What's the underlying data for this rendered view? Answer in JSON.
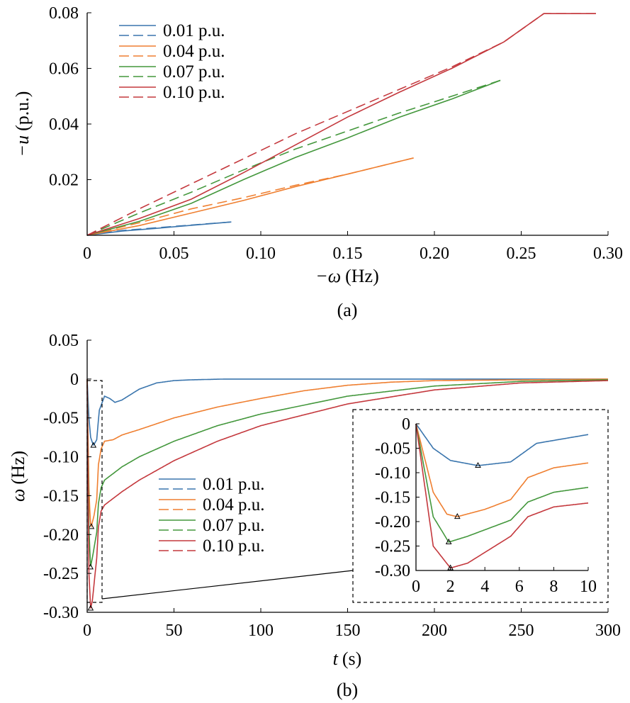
{
  "colors": [
    "#3a75ad",
    "#ef7f30",
    "#43973c",
    "#c4383d"
  ],
  "chart_data": [
    {
      "type": "line",
      "panel_label": "(a)",
      "xlabel_sym": "−ω",
      "xlabel_unit": "(Hz)",
      "ylabel_sym": "−u",
      "ylabel_unit": "(p.u.)",
      "xlim": [
        0,
        0.3
      ],
      "ylim": [
        0,
        0.08
      ],
      "xticks": [
        "0",
        "0.05",
        "0.10",
        "0.15",
        "0.20",
        "0.25",
        "0.30"
      ],
      "yticks": [
        "0.02",
        "0.04",
        "0.06",
        "0.08"
      ],
      "legend": [
        "0.01 p.u.",
        "0.04 p.u.",
        "0.07 p.u.",
        "0.10 p.u."
      ],
      "series": [
        {
          "name": "0.01 p.u.",
          "solid": {
            "x": [
              0,
              0.02,
              0.04,
              0.06,
              0.083
            ],
            "y": [
              0,
              0.0015,
              0.0025,
              0.0036,
              0.0048
            ]
          },
          "dashed": {
            "x": [
              0,
              0.02,
              0.04,
              0.06,
              0.083
            ],
            "y": [
              0,
              0.0017,
              0.0027,
              0.0037,
              0.0048
            ]
          }
        },
        {
          "name": "0.04 p.u.",
          "solid": {
            "x": [
              0,
              0.03,
              0.06,
              0.09,
              0.12,
              0.15,
              0.188
            ],
            "y": [
              0,
              0.0035,
              0.008,
              0.0125,
              0.0175,
              0.022,
              0.0278
            ]
          },
          "dashed": {
            "x": [
              0,
              0.03,
              0.06,
              0.09,
              0.12,
              0.15,
              0.188
            ],
            "y": [
              0,
              0.0045,
              0.0095,
              0.0135,
              0.018,
              0.022,
              0.0278
            ]
          }
        },
        {
          "name": "0.07 p.u.",
          "solid": {
            "x": [
              0,
              0.03,
              0.06,
              0.09,
              0.12,
              0.15,
              0.18,
              0.21,
              0.238
            ],
            "y": [
              0,
              0.005,
              0.0115,
              0.02,
              0.028,
              0.035,
              0.0425,
              0.049,
              0.0557
            ]
          },
          "dashed": {
            "x": [
              0,
              0.03,
              0.06,
              0.09,
              0.12,
              0.15,
              0.18,
              0.21,
              0.238
            ],
            "y": [
              0,
              0.008,
              0.0155,
              0.0235,
              0.031,
              0.0375,
              0.044,
              0.05,
              0.0557
            ]
          }
        },
        {
          "name": "0.10 p.u.",
          "solid": {
            "x": [
              0,
              0.03,
              0.06,
              0.09,
              0.12,
              0.15,
              0.18,
              0.21,
              0.24,
              0.263,
              0.293
            ],
            "y": [
              0,
              0.006,
              0.013,
              0.0225,
              0.0325,
              0.0425,
              0.0515,
              0.06,
              0.0695,
              0.0797,
              0.0797
            ]
          },
          "dashed": {
            "x": [
              0,
              0.03,
              0.06,
              0.09,
              0.12,
              0.15,
              0.18,
              0.21,
              0.24,
              0.263,
              0.293
            ],
            "y": [
              0,
              0.0095,
              0.0185,
              0.0275,
              0.0365,
              0.0445,
              0.0525,
              0.0605,
              0.0695,
              0.0797,
              0.0797
            ]
          }
        }
      ]
    },
    {
      "type": "line",
      "panel_label": "(b)",
      "xlabel_sym": "t",
      "xlabel_unit": "(s)",
      "ylabel_sym": "ω",
      "ylabel_unit": "(Hz)",
      "xlim": [
        0,
        300
      ],
      "ylim": [
        -0.3,
        0.05
      ],
      "xticks": [
        "0",
        "50",
        "100",
        "150",
        "200",
        "250",
        "300"
      ],
      "yticks": [
        "0.05",
        "0",
        "-0.05",
        "-0.10",
        "-0.15",
        "-0.20",
        "-0.25",
        "-0.30"
      ],
      "legend": [
        "0.01 p.u.",
        "0.04 p.u.",
        "0.07 p.u.",
        "0.10 p.u."
      ],
      "series": [
        {
          "name": "0.01 p.u.",
          "nadir_t": 3.6,
          "nadir": -0.0855,
          "t": [
            0,
            1,
            2,
            3.6,
            5.5,
            7,
            10,
            13,
            16,
            20,
            25,
            30,
            40,
            50,
            60,
            80,
            100,
            300
          ],
          "w": [
            0,
            -0.05,
            -0.075,
            -0.0855,
            -0.078,
            -0.04,
            -0.022,
            -0.025,
            -0.03,
            -0.027,
            -0.02,
            -0.013,
            -0.005,
            -0.002,
            -0.001,
            0,
            0,
            0
          ]
        },
        {
          "name": "0.04 p.u.",
          "nadir_t": 2.4,
          "nadir": -0.19,
          "t": [
            0,
            1,
            1.8,
            2.4,
            4,
            5.5,
            6.5,
            8,
            10,
            15,
            20,
            30,
            50,
            75,
            100,
            125,
            150,
            175,
            200,
            300
          ],
          "w": [
            0,
            -0.14,
            -0.185,
            -0.19,
            -0.175,
            -0.155,
            -0.11,
            -0.09,
            -0.08,
            -0.078,
            -0.072,
            -0.065,
            -0.05,
            -0.036,
            -0.025,
            -0.015,
            -0.008,
            -0.004,
            -0.002,
            0
          ]
        },
        {
          "name": "0.07 p.u.",
          "nadir_t": 1.9,
          "nadir": -0.242,
          "t": [
            0,
            1,
            1.9,
            3,
            5.5,
            6.5,
            8,
            10,
            20,
            30,
            50,
            75,
            100,
            150,
            200,
            250,
            300
          ],
          "w": [
            0,
            -0.19,
            -0.242,
            -0.23,
            -0.197,
            -0.16,
            -0.14,
            -0.13,
            -0.113,
            -0.1,
            -0.08,
            -0.06,
            -0.045,
            -0.022,
            -0.009,
            -0.003,
            -0.001
          ]
        },
        {
          "name": "0.10 p.u.",
          "nadir_t": 2.0,
          "nadir": -0.295,
          "t": [
            0,
            1,
            2,
            3,
            5.5,
            6.5,
            8,
            10,
            20,
            30,
            50,
            75,
            100,
            150,
            200,
            250,
            300
          ],
          "w": [
            0,
            -0.25,
            -0.295,
            -0.285,
            -0.23,
            -0.19,
            -0.17,
            -0.162,
            -0.145,
            -0.13,
            -0.105,
            -0.08,
            -0.06,
            -0.032,
            -0.014,
            -0.005,
            -0.002
          ]
        }
      ],
      "inset": {
        "xlim": [
          0,
          10
        ],
        "ylim": [
          -0.3,
          0
        ],
        "xticks": [
          "0",
          "2",
          "4",
          "6",
          "8",
          "10"
        ],
        "yticks": [
          "0",
          "-0.05",
          "-0.10",
          "-0.15",
          "-0.20",
          "-0.25",
          "-0.30"
        ]
      }
    }
  ]
}
